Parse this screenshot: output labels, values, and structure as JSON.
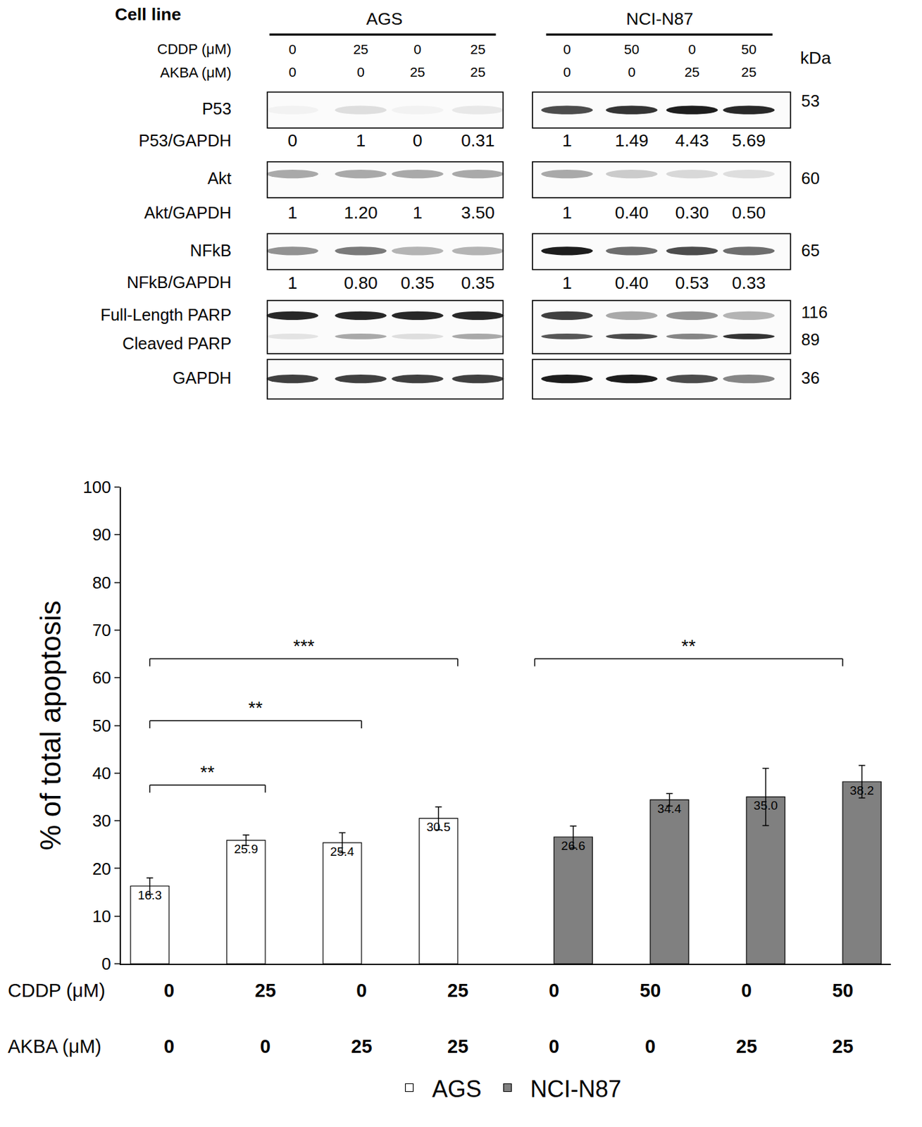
{
  "western_blot": {
    "cell_line_label": "Cell line",
    "kda_label": "kDa",
    "treatment_labels": [
      "CDDP (μM)",
      "AKBA (μM)"
    ],
    "panels": [
      {
        "name": "AGS",
        "CDDP": [
          0,
          25,
          0,
          25
        ],
        "AKBA": [
          0,
          0,
          25,
          25
        ]
      },
      {
        "name": "NCI-N87",
        "CDDP": [
          0,
          50,
          0,
          50
        ],
        "AKBA": [
          0,
          0,
          25,
          25
        ]
      }
    ],
    "rows": [
      {
        "labels": [
          "P53"
        ],
        "kda": [
          53
        ],
        "ratio_label": "P53/GAPDH",
        "ratios": [
          [
            "0",
            "1",
            "0",
            "0.31"
          ],
          [
            "1",
            "1.49",
            "4.43",
            "5.69"
          ]
        ]
      },
      {
        "labels": [
          "Akt"
        ],
        "kda": [
          60
        ],
        "ratio_label": "Akt/GAPDH",
        "ratios": [
          [
            "1",
            "1.20",
            "1",
            "3.50"
          ],
          [
            "1",
            "0.40",
            "0.30",
            "0.50"
          ]
        ]
      },
      {
        "labels": [
          "NFkB"
        ],
        "kda": [
          65
        ],
        "ratio_label": "NFkB/GAPDH",
        "ratios": [
          [
            "1",
            "0.80",
            "0.35",
            "0.35"
          ],
          [
            "1",
            "0.40",
            "0.53",
            "0.33"
          ]
        ]
      },
      {
        "labels": [
          "Full-Length PARP",
          "Cleaved PARP"
        ],
        "kda": [
          116,
          89
        ]
      },
      {
        "labels": [
          "GAPDH"
        ],
        "kda": [
          36
        ]
      }
    ]
  },
  "chart_data": {
    "type": "bar",
    "y_label": "% of total apoptosis",
    "x_rows": [
      {
        "label": "CDDP (μM)",
        "values": [
          0,
          25,
          0,
          25,
          0,
          50,
          0,
          50
        ]
      },
      {
        "label": "AKBA (μM)",
        "values": [
          0,
          0,
          25,
          25,
          0,
          0,
          25,
          25
        ]
      }
    ],
    "series": [
      {
        "name": "AGS",
        "color": "#ffffff",
        "values": [
          16.3,
          25.9,
          25.4,
          30.5,
          null,
          null,
          null,
          null
        ],
        "errors": [
          1.7,
          1.1,
          2.1,
          2.4,
          null,
          null,
          null,
          null
        ]
      },
      {
        "name": "NCI-N87",
        "color": "#808080",
        "values": [
          null,
          null,
          null,
          null,
          26.6,
          34.4,
          35.0,
          38.2
        ],
        "value_labels": [
          null,
          null,
          null,
          null,
          "26.6",
          "34.4",
          "35.0",
          "38.2"
        ],
        "errors": [
          null,
          null,
          null,
          null,
          2.3,
          1.3,
          6.0,
          3.4
        ]
      }
    ],
    "brackets": [
      {
        "from": 0,
        "to": 1,
        "y": 37.5,
        "label": "**"
      },
      {
        "from": 0,
        "to": 2,
        "y": 51,
        "label": "**"
      },
      {
        "from": 0,
        "to": 3,
        "y": 64,
        "label": "***"
      },
      {
        "from": 4,
        "to": 7,
        "y": 64,
        "label": "**"
      }
    ],
    "ylim": [
      0,
      100
    ],
    "yticks": [
      0,
      10,
      20,
      30,
      40,
      50,
      60,
      70,
      80,
      90,
      100
    ],
    "grid": false,
    "data_labels": true,
    "legend": "bottom",
    "tick_labels": "y"
  }
}
